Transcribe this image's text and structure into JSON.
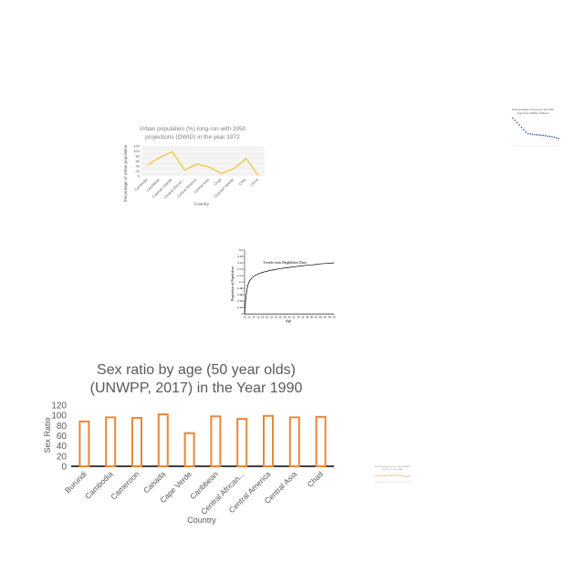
{
  "chart_data": [
    {
      "type": "line",
      "title": "Urban population (%) long-run with 2050 projections (OWID) in the year 1972",
      "title_lines": [
        "Urban population (%) long-run with 2050",
        "projections (OWID) in the year 1972"
      ],
      "xlabel": "Country",
      "ylabel": "Percentage of urban population",
      "categories": [
        "Cambodia",
        "Caribbean",
        "Cayman Islands",
        "Central African...",
        "Central America",
        "Central Asia",
        "Chad",
        "Channel Islands",
        "Chile",
        "China"
      ],
      "values": [
        44,
        75,
        97,
        24,
        48,
        36,
        10,
        30,
        70,
        2
      ],
      "ylim": [
        0,
        120
      ],
      "yticks": [
        "0",
        "20",
        "40",
        "60",
        "80",
        "100",
        "120"
      ],
      "color": "#f2c12e",
      "grid": true
    },
    {
      "type": "line",
      "title": "Rural population (%) long-run with 2050 projections (OWID) in Djibouti",
      "title_lines": [
        "Rural population (%) long-run with 2050",
        "projections (OWID) in Djibouti"
      ],
      "values": [
        95,
        88,
        80,
        72,
        64,
        56,
        48,
        42,
        41,
        40,
        39,
        38,
        38,
        37,
        36,
        35,
        34,
        33,
        32,
        30,
        28,
        26
      ],
      "ylim": [
        0,
        100
      ],
      "color": "#2e5cb8",
      "style": "dotted"
    },
    {
      "type": "line",
      "annotation": "Trends from Brightbites Data",
      "xlabel": "Age",
      "ylabel": "Proportion of Population",
      "x": [
        10,
        11,
        12,
        13,
        14,
        16,
        18,
        20,
        22,
        24,
        26,
        28,
        30,
        34,
        38,
        42,
        46,
        50,
        54,
        58,
        62,
        66,
        70,
        74,
        78,
        80
      ],
      "values": [
        0.0,
        0.05,
        0.08,
        0.095,
        0.104,
        0.114,
        0.12,
        0.124,
        0.127,
        0.13,
        0.132,
        0.134,
        0.136,
        0.139,
        0.142,
        0.144,
        0.146,
        0.148,
        0.15,
        0.152,
        0.153,
        0.155,
        0.157,
        0.158,
        0.159,
        0.16
      ],
      "xticks": [
        "10",
        "12",
        "14",
        "16",
        "18",
        "20",
        "22",
        "24",
        "26",
        "28",
        "30",
        "32",
        "34",
        "36",
        "38",
        "40",
        "42",
        "44",
        "46",
        "48",
        "50"
      ],
      "ylim": [
        0,
        0.2
      ],
      "yticks": [
        "0",
        "0.02",
        "0.04",
        "0.06",
        "0.08",
        "0.1",
        "0.12",
        "0.14",
        "0.16",
        "0.18",
        "0.2"
      ],
      "color": "#000000"
    },
    {
      "type": "bar",
      "title": "Sex ratio by age (50 year olds) (UNWPP, 2017) in the Year 1990",
      "title_lines": [
        "Sex ratio by age (50 year olds)",
        "(UNWPP, 2017) in the Year 1990"
      ],
      "xlabel": "Country",
      "ylabel": "Sex Ratio",
      "categories": [
        "Burundi",
        "Cambodia",
        "Cameroon",
        "Canada",
        "Cape Verde",
        "Caribbean",
        "Central African...",
        "Central America",
        "Central Asia",
        "Chad"
      ],
      "values": [
        88,
        96,
        95,
        102,
        65,
        98,
        93,
        99,
        96,
        97
      ],
      "ylim": [
        0,
        120
      ],
      "yticks": [
        "0",
        "20",
        "40",
        "60",
        "80",
        "100",
        "120"
      ],
      "color": "#e8873a",
      "grid": false
    },
    {
      "type": "line",
      "title": "Sex ratio by age (50 year olds) (UNWPP, 2017) in the Year 1990",
      "title_lines": [
        "Sex ratio by age (50 year olds) (UNWPP,",
        "2017) in the Year 1990"
      ],
      "values": [
        50,
        55,
        52,
        58,
        54,
        60,
        57,
        62,
        56,
        59,
        55,
        45,
        50,
        52
      ],
      "ylim": [
        0,
        100
      ],
      "color": "#e8873a"
    }
  ]
}
